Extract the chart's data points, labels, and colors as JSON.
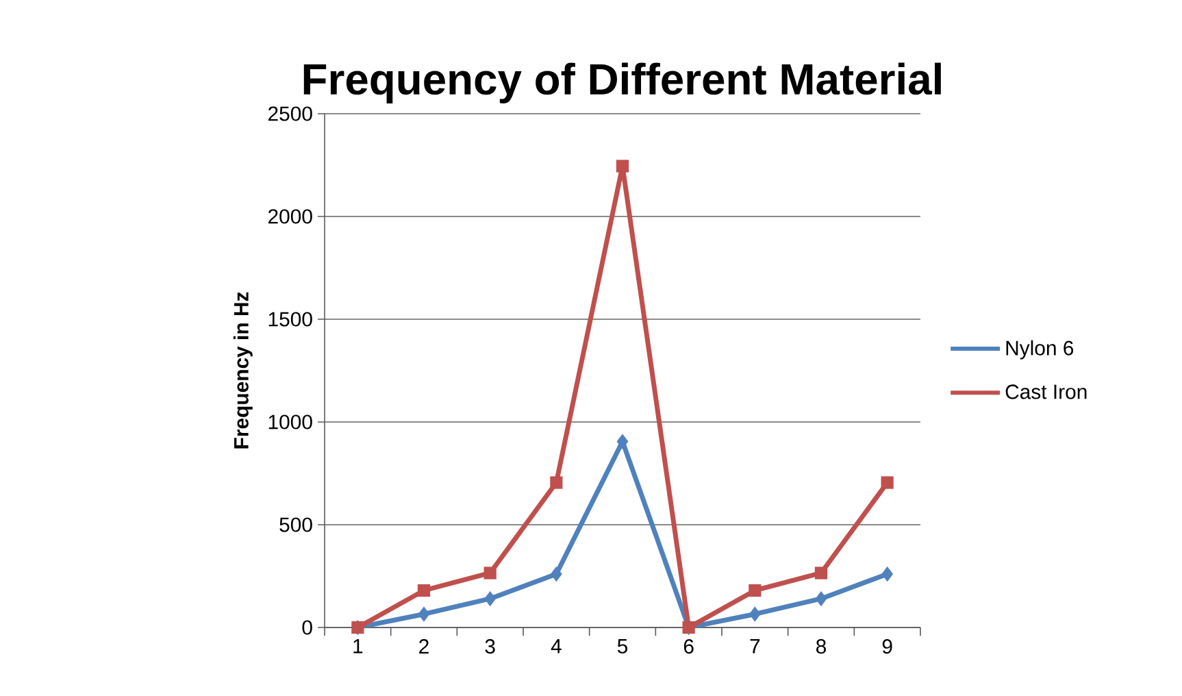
{
  "chart_data": {
    "type": "line",
    "title": "Frequency of Different Material",
    "ylabel": "Frequency in Hz",
    "categories": [
      "1",
      "2",
      "3",
      "4",
      "5",
      "6",
      "7",
      "8",
      "9"
    ],
    "series": [
      {
        "name": "Nylon 6",
        "color": "#4f81bd",
        "marker": "diamond",
        "values": [
          0,
          65,
          140,
          260,
          905,
          0,
          65,
          140,
          260
        ]
      },
      {
        "name": "Cast Iron",
        "color": "#c0504d",
        "marker": "square",
        "values": [
          0,
          180,
          265,
          705,
          2245,
          0,
          180,
          265,
          705
        ]
      }
    ],
    "ylim": [
      0,
      2500
    ],
    "yticks": [
      0,
      500,
      1000,
      1500,
      2000,
      2500
    ],
    "grid": "y",
    "legend": "right"
  }
}
